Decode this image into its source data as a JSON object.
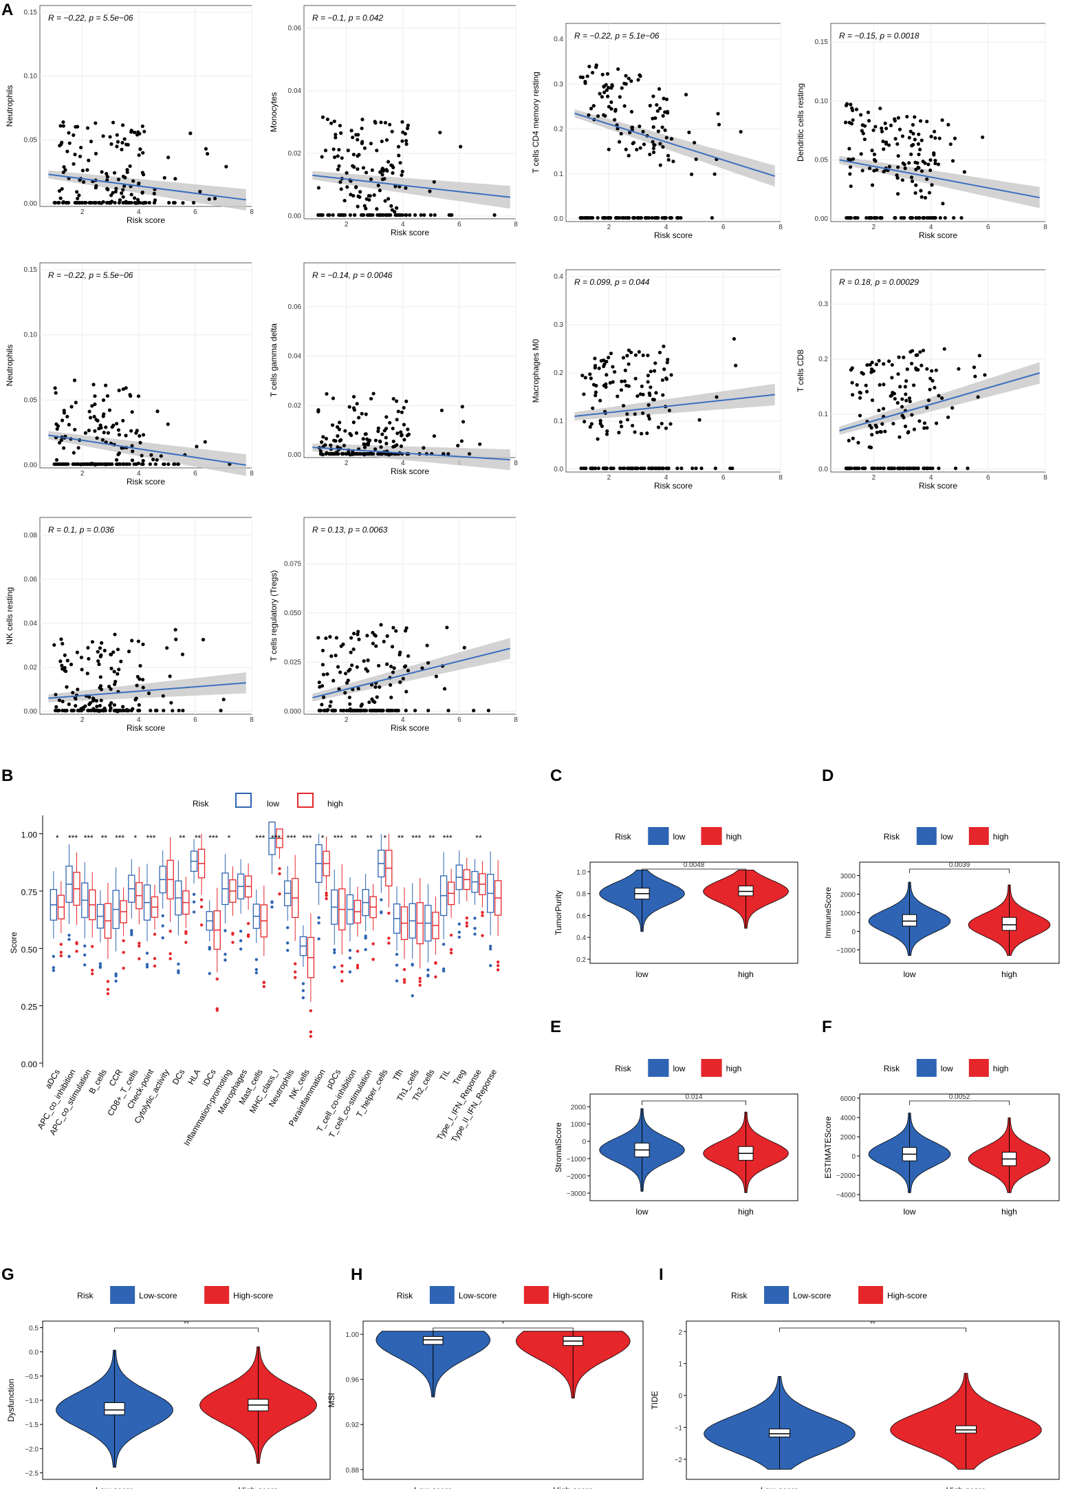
{
  "panels": {
    "A": "A",
    "B": "B",
    "C": "C",
    "D": "D",
    "E": "E",
    "F": "F",
    "G": "G",
    "H": "H",
    "I": "I"
  },
  "colors": {
    "low": "#2e64b3",
    "high": "#e5262b",
    "line": "#3a6fc0",
    "band": "#c8c8c8",
    "grid": "#ececec",
    "point": "#000000"
  },
  "chart_data": [
    {
      "id": "A1",
      "type": "scatter",
      "ylabel": "Neutrophils",
      "xlabel": "Risk score",
      "ylim": [
        0,
        0.15
      ],
      "yticks": [
        0,
        0.05,
        0.1,
        0.15
      ],
      "ytick_labels": [
        "0.00",
        "0.05",
        "0.10",
        "0.15"
      ],
      "xlim": [
        0.5,
        8
      ],
      "xticks": [
        2,
        4,
        6,
        8
      ],
      "annotation": "R = −0.22, p = 5.5e−06",
      "fit": [
        0.023,
        0.003
      ]
    },
    {
      "id": "A2",
      "type": "scatter",
      "ylabel": "Monocytes",
      "xlabel": "Risk score",
      "ylim": [
        0,
        0.065
      ],
      "yticks": [
        0,
        0.02,
        0.04,
        0.06
      ],
      "ytick_labels": [
        "0.00",
        "0.02",
        "0.04",
        "0.06"
      ],
      "xlim": [
        0.5,
        8
      ],
      "xticks": [
        2,
        4,
        6,
        8
      ],
      "annotation": "R = −0.1, p = 0.042",
      "fit": [
        0.013,
        0.006
      ]
    },
    {
      "id": "A3",
      "type": "scatter",
      "ylabel": "T cells CD4 memory resting",
      "xlabel": "Risk score",
      "ylim": [
        0,
        0.42
      ],
      "yticks": [
        0,
        0.1,
        0.2,
        0.3,
        0.4
      ],
      "ytick_labels": [
        "0.0",
        "0.1",
        "0.2",
        "0.3",
        "0.4"
      ],
      "xlim": [
        0.5,
        8
      ],
      "xticks": [
        2,
        4,
        6,
        8
      ],
      "annotation": "R = −0.22, p = 5.1e−06",
      "fit": [
        0.235,
        0.095
      ]
    },
    {
      "id": "A4",
      "type": "scatter",
      "ylabel": "Dendritic cells resting",
      "xlabel": "Risk score",
      "ylim": [
        0,
        0.16
      ],
      "yticks": [
        0,
        0.05,
        0.1,
        0.15
      ],
      "ytick_labels": [
        "0.00",
        "0.05",
        "0.10",
        "0.15"
      ],
      "xlim": [
        0.5,
        8
      ],
      "xticks": [
        2,
        4,
        6,
        8
      ],
      "annotation": "R = −0.15, p = 0.0018",
      "fit": [
        0.05,
        0.018
      ]
    },
    {
      "id": "A5",
      "type": "scatter",
      "ylabel": "Neutrophils",
      "xlabel": "Risk score",
      "ylim": [
        0,
        0.15
      ],
      "yticks": [
        0,
        0.05,
        0.1,
        0.15
      ],
      "ytick_labels": [
        "0.00",
        "0.05",
        "0.10",
        "0.15"
      ],
      "xlim": [
        0.5,
        8
      ],
      "xticks": [
        2,
        4,
        6,
        8
      ],
      "annotation": "R = −0.22, p = 5.5e−06",
      "fit": [
        0.023,
        0.0
      ]
    },
    {
      "id": "A6",
      "type": "scatter",
      "ylabel": "T cells gamma delta",
      "xlabel": "Risk score",
      "ylim": [
        0,
        0.075
      ],
      "yticks": [
        0,
        0.02,
        0.04,
        0.06
      ],
      "ytick_labels": [
        "0.00",
        "0.02",
        "0.04",
        "0.06"
      ],
      "xlim": [
        0.5,
        8
      ],
      "xticks": [
        2,
        4,
        6,
        8
      ],
      "annotation": "R = −0.14, p = 0.0046",
      "fit": [
        0.003,
        -0.002
      ]
    },
    {
      "id": "A7",
      "type": "scatter",
      "ylabel": "Macrophages M0",
      "xlabel": "Risk score",
      "ylim": [
        0,
        0.4
      ],
      "yticks": [
        0,
        0.1,
        0.2,
        0.3,
        0.4
      ],
      "ytick_labels": [
        "0.0",
        "0.1",
        "0.2",
        "0.3",
        "0.4"
      ],
      "xlim": [
        0.5,
        8
      ],
      "xticks": [
        2,
        4,
        6,
        8
      ],
      "annotation": "R = 0.099, p = 0.044",
      "fit": [
        0.11,
        0.155
      ]
    },
    {
      "id": "A8",
      "type": "scatter",
      "ylabel": "T cells CD8",
      "xlabel": "Risk score",
      "ylim": [
        0,
        0.35
      ],
      "yticks": [
        0,
        0.1,
        0.2,
        0.3
      ],
      "ytick_labels": [
        "0.0",
        "0.1",
        "0.2",
        "0.3"
      ],
      "xlim": [
        0.5,
        8
      ],
      "xticks": [
        2,
        4,
        6,
        8
      ],
      "annotation": "R = 0.18, p = 0.00029",
      "fit": [
        0.07,
        0.175
      ]
    },
    {
      "id": "A9",
      "type": "scatter",
      "ylabel": "NK cells resting",
      "xlabel": "Risk score",
      "ylim": [
        0,
        0.085
      ],
      "yticks": [
        0,
        0.02,
        0.04,
        0.06,
        0.08
      ],
      "ytick_labels": [
        "0.00",
        "0.02",
        "0.04",
        "0.06",
        "0.08"
      ],
      "xlim": [
        0.5,
        8
      ],
      "xticks": [
        2,
        4,
        6,
        8
      ],
      "annotation": "R = 0.1, p = 0.036",
      "fit": [
        0.006,
        0.013
      ]
    },
    {
      "id": "A10",
      "type": "scatter",
      "ylabel": "T cells regulatory (Tregs)",
      "xlabel": "Risk score",
      "ylim": [
        0,
        0.095
      ],
      "yticks": [
        0,
        0.025,
        0.05,
        0.075
      ],
      "ytick_labels": [
        "0.000",
        "0.025",
        "0.050",
        "0.075"
      ],
      "xlim": [
        0.5,
        8
      ],
      "xticks": [
        2,
        4,
        6,
        8
      ],
      "annotation": "R = 0.13, p = 0.0063",
      "fit": [
        0.007,
        0.032
      ]
    },
    {
      "id": "B",
      "type": "box",
      "ylabel": "Score",
      "ylim": [
        0,
        1.05
      ],
      "yticks": [
        0,
        0.25,
        0.5,
        0.75,
        1.0
      ],
      "ytick_labels": [
        "0.00",
        "0.25",
        "0.50",
        "0.75",
        "1.00"
      ],
      "legend_title": "Risk",
      "legend": [
        "low",
        "high"
      ],
      "categories": [
        "aDCs",
        "APC_co_inhibition",
        "APC_co_stimulation",
        "B_cells",
        "CCR",
        "CD8+_T_cells",
        "Check-point",
        "Cytolytic_activity",
        "DCs",
        "HLA",
        "iDCs",
        "Inflammation-promoting",
        "Macrophages",
        "Mast_cells",
        "MHC_class_I",
        "Neutrophils",
        "NK_cells",
        "Parainflammation",
        "pDCs",
        "T_cell_co-inhibition",
        "T_cell_co-stimulation",
        "T_helper_cells",
        "Tfh",
        "Th1_cells",
        "Th2_cells",
        "TIL",
        "Treg",
        "Type_I_IFN_Reponse",
        "Type_II_IFN_Reponse"
      ],
      "significance": [
        "*",
        "***",
        "***",
        "**",
        "***",
        "*",
        "***",
        "",
        "**",
        "**",
        "***",
        "*",
        "",
        "***",
        "***",
        "***",
        "***",
        "*",
        "***",
        "**",
        "**",
        "*",
        "**",
        "***",
        "**",
        "***",
        "",
        "**",
        ""
      ],
      "low_median": [
        0.69,
        0.78,
        0.71,
        0.64,
        0.67,
        0.76,
        0.7,
        0.8,
        0.72,
        0.88,
        0.62,
        0.76,
        0.77,
        0.64,
        0.98,
        0.74,
        0.51,
        0.87,
        0.68,
        0.67,
        0.7,
        0.87,
        0.63,
        0.62,
        0.61,
        0.73,
        0.81,
        0.79,
        0.74
      ],
      "high_median": [
        0.68,
        0.76,
        0.69,
        0.62,
        0.66,
        0.73,
        0.68,
        0.8,
        0.7,
        0.87,
        0.58,
        0.75,
        0.77,
        0.62,
        0.98,
        0.72,
        0.46,
        0.87,
        0.67,
        0.66,
        0.68,
        0.85,
        0.61,
        0.61,
        0.6,
        0.74,
        0.8,
        0.78,
        0.72
      ]
    },
    {
      "id": "C",
      "type": "violin",
      "ylabel": "TumorPurity",
      "ylim": [
        0.2,
        1.05
      ],
      "yticks": [
        0.2,
        0.4,
        0.6,
        0.8,
        1.0
      ],
      "ytick_labels": [
        "0.2",
        "0.4",
        "0.6",
        "0.8",
        "1.0"
      ],
      "categories": [
        "low",
        "high"
      ],
      "medians": [
        0.8,
        0.82
      ],
      "q1": [
        0.75,
        0.78
      ],
      "q3": [
        0.85,
        0.87
      ],
      "legend_title": "Risk",
      "legend": [
        "low",
        "high"
      ],
      "pvalue": "0.0048"
    },
    {
      "id": "D",
      "type": "violin",
      "ylabel": "ImmuneScore",
      "ylim": [
        -1500,
        3500
      ],
      "yticks": [
        -1000,
        0,
        1000,
        2000,
        3000
      ],
      "ytick_labels": [
        "−1000",
        "0",
        "1000",
        "2000",
        "3000"
      ],
      "categories": [
        "low",
        "high"
      ],
      "medians": [
        550,
        350
      ],
      "q1": [
        280,
        50
      ],
      "q3": [
        900,
        750
      ],
      "legend_title": "Risk",
      "legend": [
        "low",
        "high"
      ],
      "pvalue": "0.0039"
    },
    {
      "id": "E",
      "type": "violin",
      "ylabel": "StromalScore",
      "ylim": [
        -3200,
        2500
      ],
      "yticks": [
        -3000,
        -2000,
        -1000,
        0,
        1000,
        2000
      ],
      "ytick_labels": [
        "−3000",
        "−2000",
        "−1000",
        "0",
        "1000",
        "2000"
      ],
      "categories": [
        "low",
        "high"
      ],
      "medians": [
        -500,
        -700
      ],
      "q1": [
        -900,
        -1100
      ],
      "q3": [
        -100,
        -300
      ],
      "legend_title": "Risk",
      "legend": [
        "low",
        "high"
      ],
      "pvalue": "0.014"
    },
    {
      "id": "F",
      "type": "violin",
      "ylabel": "ESTIMATEScore",
      "ylim": [
        -4200,
        6000
      ],
      "yticks": [
        -4000,
        -2000,
        0,
        2000,
        4000,
        6000
      ],
      "ytick_labels": [
        "−4000",
        "−2000",
        "0",
        "2000",
        "4000",
        "6000"
      ],
      "categories": [
        "low",
        "high"
      ],
      "medians": [
        200,
        -300
      ],
      "q1": [
        -500,
        -1000
      ],
      "q3": [
        900,
        400
      ],
      "legend_title": "Risk",
      "legend": [
        "low",
        "high"
      ],
      "pvalue": "0.0052"
    },
    {
      "id": "G",
      "type": "violin",
      "ylabel": "Dysfunction",
      "ylim": [
        -2.55,
        0.55
      ],
      "yticks": [
        -2.5,
        -2,
        -1.5,
        -1,
        -0.5,
        0,
        0.5
      ],
      "ytick_labels": [
        "−2.5",
        "−2.0",
        "−1.5",
        "−1.0",
        "−0.5",
        "0.0",
        "0.5"
      ],
      "categories": [
        "Low-score",
        "High-score"
      ],
      "medians": [
        -1.2,
        -1.1
      ],
      "q1": [
        -1.3,
        -1.22
      ],
      "q3": [
        -1.05,
        -0.98
      ],
      "legend_title": "Risk",
      "legend": [
        "Low-score",
        "High-score"
      ],
      "pvalue": "**"
    },
    {
      "id": "H",
      "type": "violin",
      "ylabel": "MSI",
      "ylim": [
        0.875,
        1.008
      ],
      "yticks": [
        0.88,
        0.92,
        0.96,
        1.0
      ],
      "ytick_labels": [
        "0.88",
        "0.92",
        "0.96",
        "1.00"
      ],
      "categories": [
        "Low-score",
        "High-score"
      ],
      "medians": [
        0.995,
        0.994
      ],
      "q1": [
        0.991,
        0.99
      ],
      "q3": [
        0.998,
        0.998
      ],
      "legend_title": "Risk",
      "legend": [
        "Low-score",
        "High-score"
      ],
      "pvalue": "*"
    },
    {
      "id": "I",
      "type": "violin",
      "ylabel": "TIDE",
      "ylim": [
        -2.5,
        2.2
      ],
      "yticks": [
        -2,
        -1,
        0,
        1,
        2
      ],
      "ytick_labels": [
        "−2",
        "−1",
        "0",
        "1",
        "2"
      ],
      "categories": [
        "Low-score",
        "High-score"
      ],
      "medians": [
        -1.2,
        -1.08
      ],
      "q1": [
        -1.3,
        -1.18
      ],
      "q3": [
        -1.05,
        -0.95
      ],
      "legend_title": "Risk",
      "legend": [
        "Low-score",
        "High-score"
      ],
      "pvalue": "**"
    }
  ]
}
